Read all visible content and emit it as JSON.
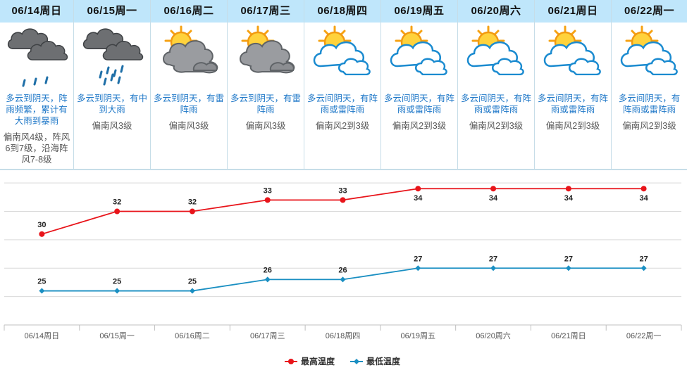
{
  "forecast": [
    {
      "date": "06/14周日",
      "icon": "rain-cloud-icon",
      "desc": "多云到阴天，阵雨频繁，累计有大雨到暴雨",
      "wind": "偏南风4级，阵风6到7级，沿海阵风7-8级"
    },
    {
      "date": "06/15周一",
      "icon": "heavy-rain-cloud-icon",
      "desc": "多云到阴天，有中到大雨",
      "wind": "偏南风3级"
    },
    {
      "date": "06/16周二",
      "icon": "sun-behind-dark-cloud-icon",
      "desc": "多云到阴天，有雷阵雨",
      "wind": "偏南风3级"
    },
    {
      "date": "06/17周三",
      "icon": "sun-behind-dark-cloud-icon",
      "desc": "多云到阴天，有雷阵雨",
      "wind": "偏南风3级"
    },
    {
      "date": "06/18周四",
      "icon": "sun-behind-cloud-icon",
      "desc": "多云间阴天，有阵雨或雷阵雨",
      "wind": "偏南风2到3级"
    },
    {
      "date": "06/19周五",
      "icon": "sun-behind-cloud-icon",
      "desc": "多云间阴天，有阵雨或雷阵雨",
      "wind": "偏南风2到3级"
    },
    {
      "date": "06/20周六",
      "icon": "sun-behind-cloud-icon",
      "desc": "多云间阴天，有阵雨或雷阵雨",
      "wind": "偏南风2到3级"
    },
    {
      "date": "06/21周日",
      "icon": "sun-behind-cloud-icon",
      "desc": "多云间阴天，有阵雨或雷阵雨",
      "wind": "偏南风2到3级"
    },
    {
      "date": "06/22周一",
      "icon": "sun-behind-cloud-icon",
      "desc": "多云间阴天，有阵雨或雷阵雨",
      "wind": "偏南风2到3级"
    }
  ],
  "colors": {
    "header_bg": "#bfe6fb",
    "desc_text": "#1f78c8",
    "high_line": "#e8141a",
    "low_line": "#1a8fc2",
    "grid": "#d9d9d9"
  },
  "chart_data": {
    "type": "line",
    "categories": [
      "06/14周日",
      "06/15周一",
      "06/16周二",
      "06/17周三",
      "06/18周四",
      "06/19周五",
      "06/20周六",
      "06/21周日",
      "06/22周一"
    ],
    "series": [
      {
        "name": "最高温度",
        "values": [
          30,
          32,
          32,
          33,
          33,
          34,
          34,
          34,
          34
        ],
        "color": "#e8141a",
        "marker": "circle"
      },
      {
        "name": "最低温度",
        "values": [
          25,
          25,
          25,
          26,
          26,
          27,
          27,
          27,
          27
        ],
        "color": "#1a8fc2",
        "marker": "diamond"
      }
    ],
    "ylim": [
      22,
      35.5
    ],
    "grid": true,
    "legend": "bottom-center",
    "title": "",
    "xlabel": "",
    "ylabel": ""
  }
}
